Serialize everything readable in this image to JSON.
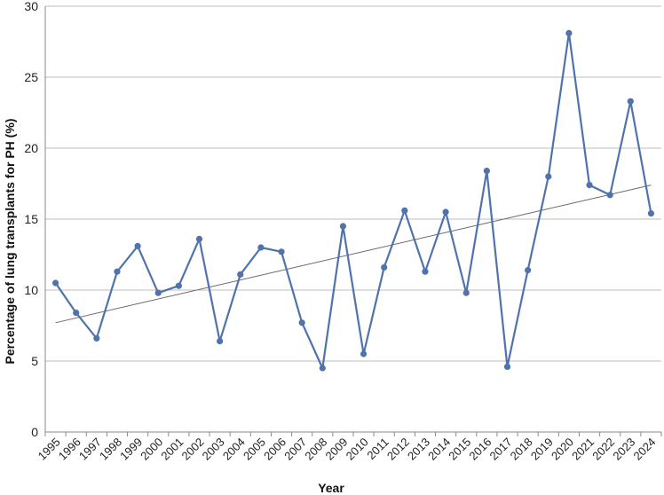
{
  "chart_data": {
    "type": "line",
    "title": "",
    "xlabel": "Year",
    "ylabel": "Percentage of lung transplants for PH (%)",
    "ylim": [
      0,
      30
    ],
    "yticks": [
      0,
      5,
      10,
      15,
      20,
      25,
      30
    ],
    "grid": "horizontal",
    "legend": "none",
    "categories": [
      "1995",
      "1996",
      "1997",
      "1998",
      "1999",
      "2000",
      "2001",
      "2002",
      "2003",
      "2004",
      "2005",
      "2006",
      "2007",
      "2008",
      "2009",
      "2010",
      "2011",
      "2012",
      "2013",
      "2014",
      "2015",
      "2016",
      "2017",
      "2018",
      "2019",
      "2020",
      "2021",
      "2022",
      "2023",
      "2024"
    ],
    "series": [
      {
        "values": [
          10.5,
          8.4,
          6.6,
          11.3,
          13.1,
          9.8,
          10.3,
          13.6,
          6.4,
          11.1,
          13.0,
          12.7,
          7.7,
          4.5,
          14.5,
          5.5,
          11.6,
          15.6,
          11.3,
          15.5,
          9.8,
          18.4,
          4.6,
          11.4,
          18.0,
          28.1,
          17.4,
          16.7,
          23.3,
          15.4
        ],
        "color": "#4f73aa"
      }
    ],
    "trendline": {
      "type": "linear",
      "from": 7.7,
      "to": 17.4,
      "color": "#6a6a6a"
    }
  }
}
